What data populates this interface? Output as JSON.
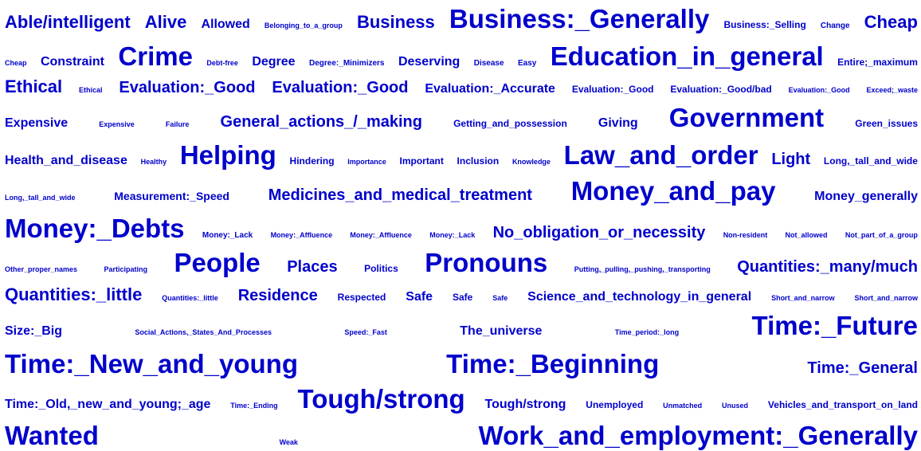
{
  "word_color": "#0000cc",
  "background_color": "#ffffff",
  "cloud": {
    "lines": [
      {
        "words": [
          {
            "text": "Able/intelligent",
            "size": 8
          },
          {
            "text": "Alive",
            "size": 8
          },
          {
            "text": "Allowed",
            "size": 5
          },
          {
            "text": "Belonging_to_a_group",
            "size": 1
          },
          {
            "text": "Business",
            "size": 8
          },
          {
            "text": "Business:_Generally",
            "size": 12
          },
          {
            "text": "Business:_Selling",
            "size": 3
          },
          {
            "text": "Change",
            "size": 2
          },
          {
            "text": "Cheap",
            "size": 8
          }
        ]
      },
      {
        "words": [
          {
            "text": "Cheap",
            "size": 1
          },
          {
            "text": "Constraint",
            "size": 5
          },
          {
            "text": "Crime",
            "size": 12
          },
          {
            "text": "Debt-free",
            "size": 1
          },
          {
            "text": "Degree",
            "size": 5
          },
          {
            "text": "Degree:_Minimizers",
            "size": 2
          },
          {
            "text": "Deserving",
            "size": 5
          },
          {
            "text": "Disease",
            "size": 2
          },
          {
            "text": "Easy",
            "size": 2
          },
          {
            "text": "Education_in_general",
            "size": 12
          },
          {
            "text": "Entire;_maximum",
            "size": 3
          }
        ]
      },
      {
        "words": [
          {
            "text": "Ethical",
            "size": 8
          },
          {
            "text": "Ethical",
            "size": 1
          },
          {
            "text": "Evaluation:_Good",
            "size": 7
          },
          {
            "text": "Evaluation:_Good",
            "size": 7
          },
          {
            "text": "Evaluation:_Accurate",
            "size": 5
          },
          {
            "text": "Evaluation:_Good",
            "size": 3
          },
          {
            "text": "Evaluation:_Good/bad",
            "size": 3
          },
          {
            "text": "Evaluation:_Good",
            "size": 1
          },
          {
            "text": "Exceed;_waste",
            "size": 1
          }
        ]
      },
      {
        "words": [
          {
            "text": "Expensive",
            "size": 5
          },
          {
            "text": "Expensive",
            "size": 1
          },
          {
            "text": "Failure",
            "size": 1
          },
          {
            "text": "General_actions_/_making",
            "size": 7
          },
          {
            "text": "Getting_and_possession",
            "size": 3
          },
          {
            "text": "Giving",
            "size": 5
          },
          {
            "text": "Government",
            "size": 12
          },
          {
            "text": "Green_issues",
            "size": 3
          }
        ]
      },
      {
        "words": [
          {
            "text": "Health_and_disease",
            "size": 5
          },
          {
            "text": "Healthy",
            "size": 1
          },
          {
            "text": "Helping",
            "size": 12
          },
          {
            "text": "Hindering",
            "size": 3
          },
          {
            "text": "Importance",
            "size": 1
          },
          {
            "text": "Important",
            "size": 3
          },
          {
            "text": "Inclusion",
            "size": 3
          },
          {
            "text": "Knowledge",
            "size": 1
          },
          {
            "text": "Law_and_order",
            "size": 12
          },
          {
            "text": "Light",
            "size": 7
          },
          {
            "text": "Long,_tall_and_wide",
            "size": 3
          }
        ]
      },
      {
        "words": [
          {
            "text": "Long,_tall_and_wide",
            "size": 1
          },
          {
            "text": "Measurement:_Speed",
            "size": 4
          },
          {
            "text": "Medicines_and_medical_treatment",
            "size": 7
          },
          {
            "text": "Money_and_pay",
            "size": 12
          },
          {
            "text": "Money_generally",
            "size": 5
          }
        ]
      },
      {
        "words": [
          {
            "text": "Money:_Debts",
            "size": 12
          },
          {
            "text": "Money:_Lack",
            "size": 2
          },
          {
            "text": "Money:_Affluence",
            "size": 1
          },
          {
            "text": "Money:_Affluence",
            "size": 1
          },
          {
            "text": "Money:_Lack",
            "size": 1
          },
          {
            "text": "No_obligation_or_necessity",
            "size": 7
          },
          {
            "text": "Non-resident",
            "size": 1
          },
          {
            "text": "Not_allowed",
            "size": 1
          },
          {
            "text": "Not_part_of_a_group",
            "size": 1
          }
        ]
      },
      {
        "words": [
          {
            "text": "Other_proper_names",
            "size": 1
          },
          {
            "text": "Participating",
            "size": 1
          },
          {
            "text": "People",
            "size": 12
          },
          {
            "text": "Places",
            "size": 7
          },
          {
            "text": "Politics",
            "size": 3
          },
          {
            "text": "Pronouns",
            "size": 12
          },
          {
            "text": "Putting,_pulling,_pushing,_transporting",
            "size": 1
          },
          {
            "text": "Quantities:_many/much",
            "size": 7
          }
        ]
      },
      {
        "words": [
          {
            "text": "Quantities:_little",
            "size": 8
          },
          {
            "text": "Quantities:_little",
            "size": 1
          },
          {
            "text": "Residence",
            "size": 7
          },
          {
            "text": "Respected",
            "size": 3
          },
          {
            "text": "Safe",
            "size": 5
          },
          {
            "text": "Safe",
            "size": 3
          },
          {
            "text": "Safe",
            "size": 1
          },
          {
            "text": "Science_and_technology_in_general",
            "size": 5
          },
          {
            "text": "Short_and_narrow",
            "size": 1
          },
          {
            "text": "Short_and_narrow",
            "size": 1
          }
        ]
      },
      {
        "words": [
          {
            "text": "Size:_Big",
            "size": 5
          },
          {
            "text": "Social_Actions,_States_And_Processes",
            "size": 1
          },
          {
            "text": "Speed:_Fast",
            "size": 1
          },
          {
            "text": "The_universe",
            "size": 5
          },
          {
            "text": "Time_period:_long",
            "size": 1
          },
          {
            "text": "Time:_Future",
            "size": 12
          }
        ]
      },
      {
        "words": [
          {
            "text": "Time:_New_and_young",
            "size": 12
          },
          {
            "text": "Time:_Beginning",
            "size": 12
          },
          {
            "text": "Time:_General",
            "size": 7
          }
        ]
      },
      {
        "words": [
          {
            "text": "Time:_Old,_new_and_young;_age",
            "size": 5
          },
          {
            "text": "Time:_Ending",
            "size": 1
          },
          {
            "text": "Tough/strong",
            "size": 12
          },
          {
            "text": "Tough/strong",
            "size": 5
          },
          {
            "text": "Unemployed",
            "size": 3
          },
          {
            "text": "Unmatched",
            "size": 1
          },
          {
            "text": "Unused",
            "size": 1
          },
          {
            "text": "Vehicles_and_transport_on_land",
            "size": 3
          }
        ]
      },
      {
        "words": [
          {
            "text": "Wanted",
            "size": 12
          },
          {
            "text": "Weak",
            "size": 1
          },
          {
            "text": "Work_and_employment:_Generally",
            "size": 12
          }
        ]
      }
    ]
  }
}
